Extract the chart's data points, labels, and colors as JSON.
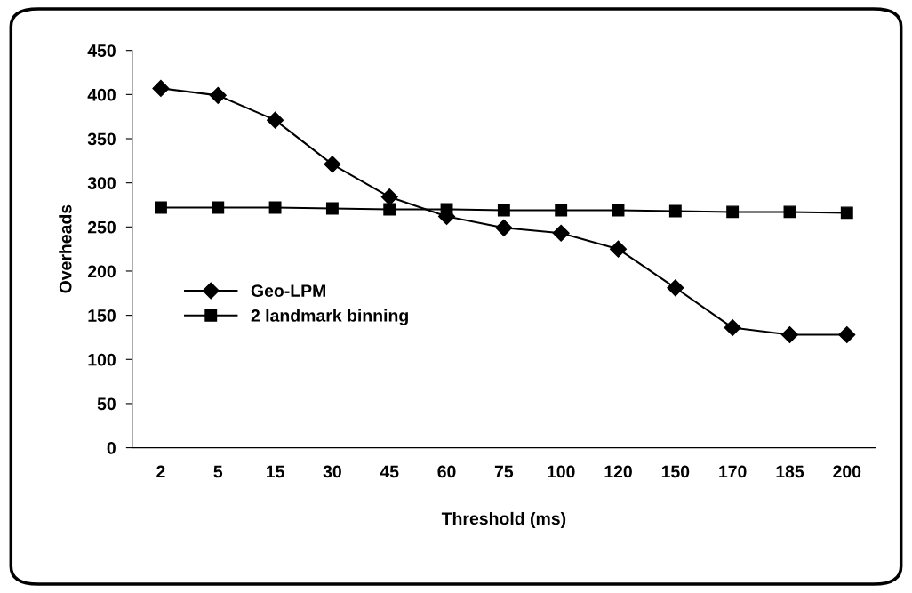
{
  "chart_data": {
    "type": "line",
    "xlabel": "Threshold (ms)",
    "ylabel": "Overheads",
    "categories": [
      "2",
      "5",
      "15",
      "30",
      "45",
      "60",
      "75",
      "100",
      "120",
      "150",
      "170",
      "185",
      "200"
    ],
    "series": [
      {
        "name": "Geo-LPM",
        "color": "#000000",
        "marker": "diamond",
        "values": [
          407,
          399,
          371,
          321,
          284,
          262,
          249,
          243,
          225,
          181,
          136,
          128,
          128
        ]
      },
      {
        "name": "2 landmark binning",
        "color": "#000000",
        "marker": "square",
        "values": [
          272,
          272,
          272,
          271,
          270,
          270,
          269,
          269,
          269,
          268,
          267,
          267,
          266
        ]
      }
    ],
    "ylim": [
      0,
      450
    ],
    "yticks": [
      0,
      50,
      100,
      150,
      200,
      250,
      300,
      350,
      400,
      450
    ],
    "grid": false,
    "legend": "center left",
    "line_style": "solid"
  }
}
